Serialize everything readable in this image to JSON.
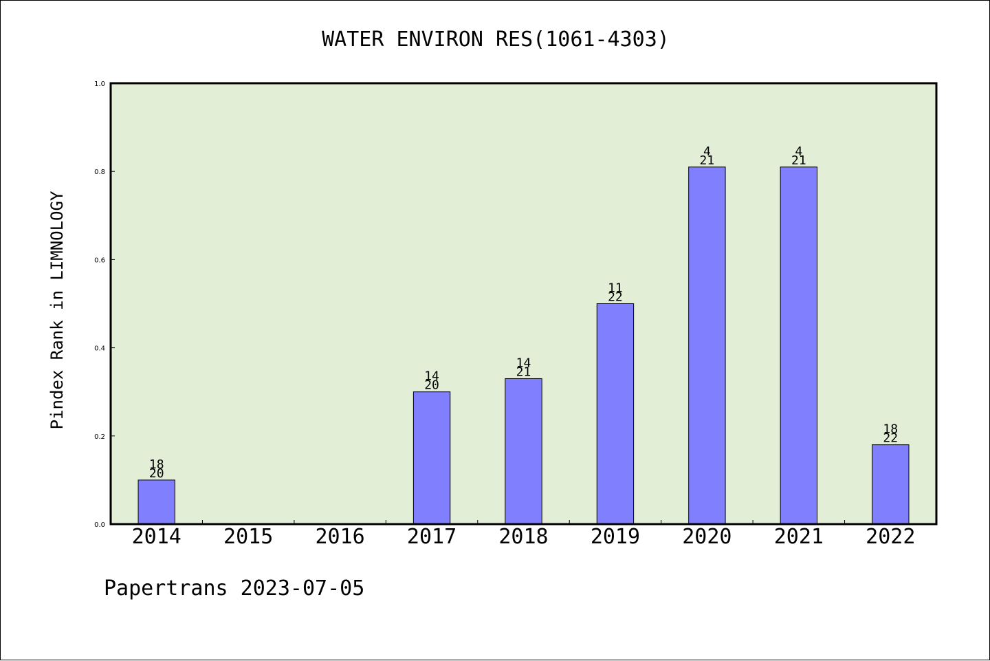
{
  "chart_data": {
    "type": "bar",
    "title": "WATER ENVIRON RES(1061-4303)",
    "xlabel": "",
    "ylabel": "Pindex Rank in LIMNOLOGY",
    "ylim": [
      0,
      1.0
    ],
    "yticks": [
      "0.0",
      "0.2",
      "0.4",
      "0.6",
      "0.8",
      "1.0"
    ],
    "grid": false,
    "background_color": "#e2efd6",
    "bar_color": "#8080ff",
    "categories": [
      "2014",
      "2015",
      "2016",
      "2017",
      "2018",
      "2019",
      "2020",
      "2021",
      "2022"
    ],
    "values": [
      0.1,
      null,
      null,
      0.3,
      0.33,
      0.5,
      0.81,
      0.81,
      0.18
    ],
    "rank_labels": [
      "18",
      "",
      "",
      "14",
      "14",
      "11",
      "4",
      "4",
      "18"
    ],
    "total_labels": [
      "20",
      "",
      "",
      "20",
      "21",
      "22",
      "21",
      "21",
      "22"
    ]
  },
  "footer": "Papertrans 2023-07-05"
}
